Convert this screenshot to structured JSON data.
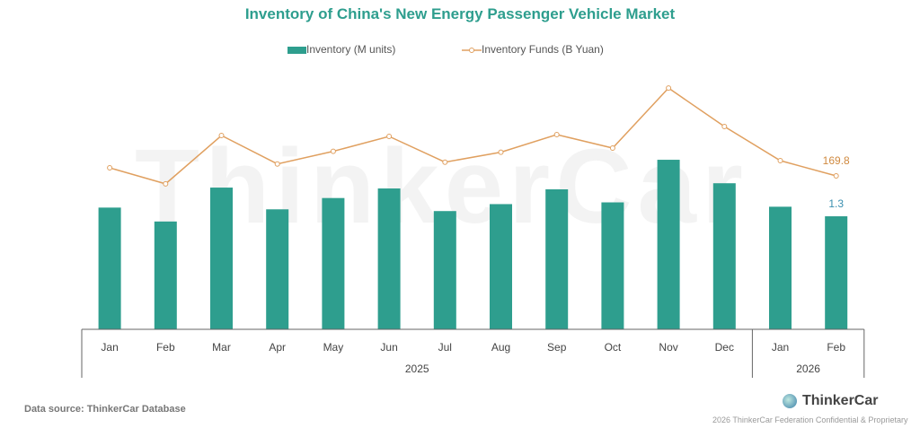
{
  "chart_data": {
    "type": "bar",
    "title": "Inventory of China's New Energy Passenger Vehicle Market",
    "categories": [
      "Jan",
      "Feb",
      "Mar",
      "Apr",
      "May",
      "Jun",
      "Jul",
      "Aug",
      "Sep",
      "Oct",
      "Nov",
      "Dec",
      "Jan",
      "Feb"
    ],
    "groups": [
      {
        "label": "2025",
        "count": 12
      },
      {
        "label": "2026",
        "count": 2
      }
    ],
    "series": [
      {
        "name": "Inventory (M units)",
        "type": "bar",
        "color": "#2e9e8e",
        "values": [
          1.4,
          1.24,
          1.63,
          1.38,
          1.51,
          1.62,
          1.36,
          1.44,
          1.61,
          1.46,
          1.95,
          1.68,
          1.41,
          1.3
        ]
      },
      {
        "name": "Inventory Funds (B Yuan)",
        "type": "line",
        "color": "#e0a060",
        "values": [
          178.7,
          161.0,
          214.5,
          183.0,
          197.0,
          213.5,
          185.0,
          196.0,
          215.5,
          200.6,
          267.0,
          224.4,
          186.7,
          169.8
        ]
      }
    ],
    "data_labels": {
      "bar_last": "1.3",
      "line_last": "169.8"
    },
    "legend": "top",
    "grid": false
  },
  "footer": {
    "source": "Data source: ThinkerCar Database",
    "brand": "ThinkerCar",
    "confidential": "2026 ThinkerCar Federation Confidential & Proprietary"
  },
  "watermark": "ThinkerCar"
}
